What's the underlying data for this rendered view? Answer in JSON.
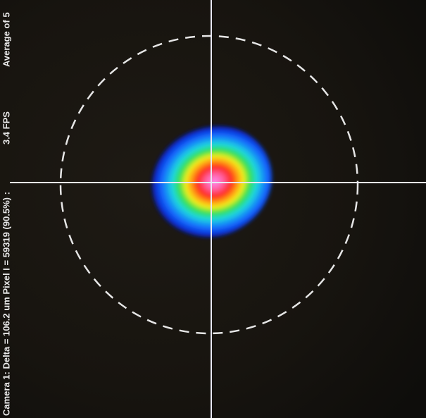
{
  "overlay": {
    "average": "Average of 5",
    "status": "Camera 1: Delta = 106.2 um Pixel I = 59319 (90.5%) :",
    "fps": "3.4 FPS"
  }
}
